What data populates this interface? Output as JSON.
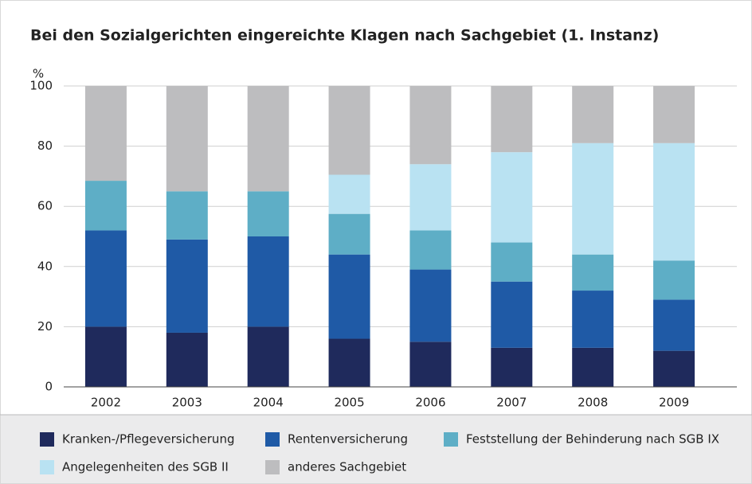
{
  "chart_data": {
    "type": "stacked_bar",
    "title": "Bei den Sozialgerichten eingereichte Klagen nach Sachgebiet (1. Instanz)",
    "y_label": "%",
    "categories": [
      "2002",
      "2003",
      "2004",
      "2005",
      "2006",
      "2007",
      "2008",
      "2009"
    ],
    "series": [
      {
        "name": "Kranken-/Pflegeversicherung",
        "color": "#1f2a5c",
        "values": [
          20,
          18,
          20,
          16,
          15,
          13,
          13,
          12
        ]
      },
      {
        "name": "Rentenversicherung",
        "color": "#1f5aa6",
        "values": [
          32,
          31,
          30,
          28,
          24,
          22,
          19,
          17
        ]
      },
      {
        "name": "Feststellung der Behinderung nach SGB IX",
        "color": "#5eaec6",
        "values": [
          16.5,
          16,
          15,
          13.5,
          13,
          13,
          12,
          13
        ]
      },
      {
        "name": "Angelegenheiten des SGB II",
        "color": "#b9e2f2",
        "values": [
          null,
          null,
          null,
          13,
          22,
          30,
          37,
          39
        ]
      },
      {
        "name": "anderes Sachgebiet",
        "color": "#bdbdbf",
        "values": [
          31.5,
          35,
          35,
          29.5,
          26,
          22,
          19,
          19
        ]
      }
    ],
    "ylim": [
      0,
      100
    ],
    "yticks": [
      0,
      20,
      40,
      60,
      80,
      100
    ],
    "grid": true
  }
}
